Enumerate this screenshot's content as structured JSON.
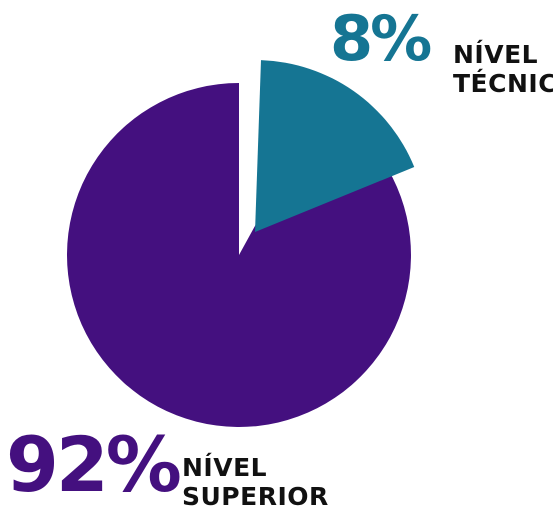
{
  "chart_data": {
    "type": "pie",
    "categories": [
      "NÍVEL TÉCNICO",
      "NÍVEL SUPERIOR"
    ],
    "values": [
      8,
      92
    ],
    "slices": [
      {
        "percent_label": "8%",
        "label_line1": "NÍVEL",
        "label_line2": "TÉCNICO",
        "value": 8,
        "color": "#157593",
        "exploded": true
      },
      {
        "percent_label": "92%",
        "label_line1": "NÍVEL",
        "label_line2": "SUPERIOR",
        "value": 92,
        "color": "#44107f",
        "exploded": false
      }
    ],
    "title": "",
    "xlabel": "",
    "ylabel": ""
  }
}
